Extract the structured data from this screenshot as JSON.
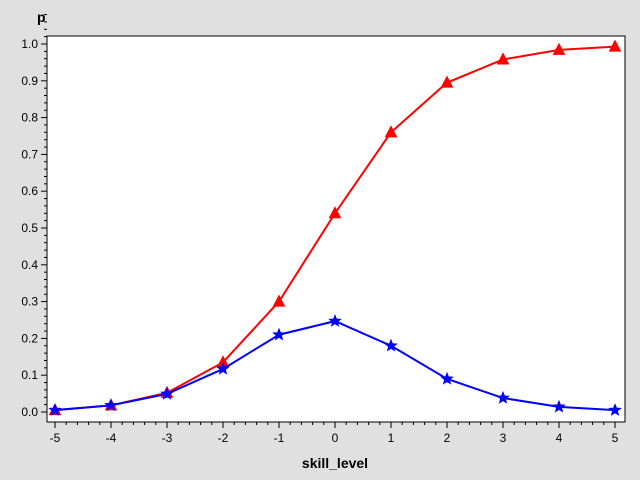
{
  "chart_data": {
    "type": "line",
    "title": "",
    "xlabel": "skill_level",
    "ylabel": "p",
    "xlim": [
      -5,
      5
    ],
    "ylim": [
      0,
      1
    ],
    "x_ticks": [
      "-5",
      "-4",
      "-3",
      "-2",
      "-1",
      "0",
      "1",
      "2",
      "3",
      "4",
      "5"
    ],
    "y_ticks": [
      "0.0",
      "0.1",
      "0.2",
      "0.3",
      "0.4",
      "0.5",
      "0.6",
      "0.7",
      "0.8",
      "0.9",
      "1.0"
    ],
    "grid": false,
    "legend": "none",
    "x": [
      -5,
      -4,
      -3,
      -2,
      -1,
      0,
      1,
      2,
      3,
      4,
      5
    ],
    "series": [
      {
        "color": "#ff0000",
        "marker": "triangle",
        "values": [
          0.005,
          0.018,
          0.052,
          0.135,
          0.3,
          0.54,
          0.76,
          0.895,
          0.958,
          0.984,
          0.993
        ]
      },
      {
        "color": "#0000ff",
        "marker": "star",
        "values": [
          0.005,
          0.018,
          0.049,
          0.117,
          0.21,
          0.247,
          0.18,
          0.09,
          0.038,
          0.014,
          0.005
        ]
      }
    ]
  }
}
